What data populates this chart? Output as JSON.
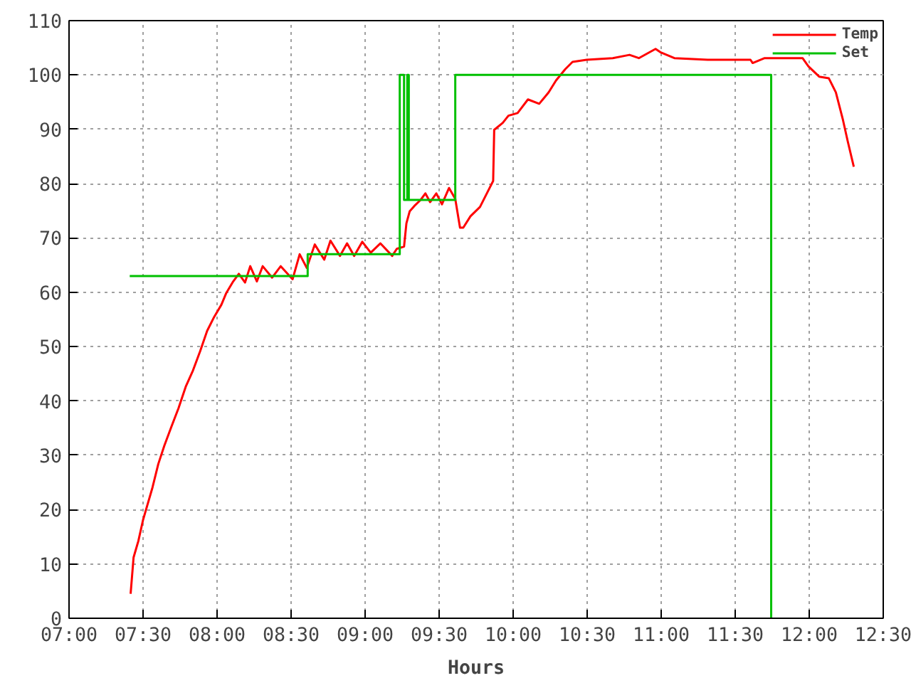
{
  "chart_data": {
    "type": "line",
    "xlabel": "Hours",
    "xlim": [
      7,
      12.5
    ],
    "xticks": [
      {
        "value": 7,
        "label": "07:00"
      },
      {
        "value": 7.5,
        "label": "07:30"
      },
      {
        "value": 8,
        "label": "08:00"
      },
      {
        "value": 8.5,
        "label": "08:30"
      },
      {
        "value": 9,
        "label": "09:00"
      },
      {
        "value": 9.5,
        "label": "09:30"
      },
      {
        "value": 10,
        "label": "10:00"
      },
      {
        "value": 10.5,
        "label": "10:30"
      },
      {
        "value": 11,
        "label": "11:00"
      },
      {
        "value": 11.5,
        "label": "11:30"
      },
      {
        "value": 12,
        "label": "12:00"
      },
      {
        "value": 12.5,
        "label": "12:30"
      }
    ],
    "ylim": [
      0,
      110
    ],
    "yticks": [
      0,
      10,
      20,
      30,
      40,
      50,
      60,
      70,
      80,
      90,
      100,
      110
    ],
    "grid": true,
    "legend": "top right",
    "marker": "none",
    "line_style": "solid",
    "series": [
      {
        "name": "Temp",
        "color": "#ff0000",
        "x": [
          7.416,
          7.436,
          7.468,
          7.5,
          7.532,
          7.564,
          7.603,
          7.644,
          7.692,
          7.74,
          7.788,
          7.837,
          7.885,
          7.933,
          7.981,
          8.029,
          8.061,
          8.109,
          8.147,
          8.189,
          8.224,
          8.269,
          8.308,
          8.372,
          8.43,
          8.51,
          8.558,
          8.606,
          8.66,
          8.724,
          8.766,
          8.83,
          8.878,
          8.926,
          8.981,
          9.038,
          9.103,
          9.183,
          9.214,
          9.263,
          9.279,
          9.301,
          9.333,
          9.375,
          9.407,
          9.439,
          9.481,
          9.519,
          9.567,
          9.609,
          9.641,
          9.663,
          9.712,
          9.776,
          9.824,
          9.865,
          9.872,
          9.93,
          9.968,
          10.03,
          10.1,
          10.176,
          10.24,
          10.29,
          10.353,
          10.401,
          10.497,
          10.673,
          10.786,
          10.849,
          10.962,
          10.994,
          11.089,
          11.314,
          11.603,
          11.618,
          11.699,
          11.955,
          11.994,
          12.067,
          12.132,
          12.18,
          12.228,
          12.26,
          12.301
        ],
        "values": [
          4.5,
          11.2,
          14.2,
          18.1,
          21.1,
          24.1,
          28.4,
          31.8,
          35.3,
          38.7,
          42.6,
          45.6,
          49.1,
          52.9,
          55.5,
          57.7,
          59.8,
          62.0,
          63.4,
          61.8,
          64.8,
          62.0,
          64.8,
          62.7,
          64.8,
          62.4,
          67.0,
          64.5,
          68.8,
          66.0,
          69.5,
          66.7,
          69.0,
          66.7,
          69.3,
          67.3,
          69.0,
          66.7,
          68.0,
          68.4,
          72.7,
          74.9,
          75.9,
          77.0,
          78.2,
          76.6,
          78.2,
          76.2,
          79.2,
          77.2,
          71.9,
          71.9,
          74.0,
          75.7,
          78.3,
          80.5,
          89.9,
          91.2,
          92.5,
          93.0,
          95.5,
          94.7,
          96.8,
          99.0,
          101.1,
          102.4,
          102.8,
          103.1,
          103.7,
          103.1,
          104.8,
          104.2,
          103.1,
          102.8,
          102.8,
          102.2,
          103.1,
          103.1,
          101.6,
          99.7,
          99.4,
          96.8,
          91.7,
          87.8,
          83.1
        ]
      },
      {
        "name": "Set",
        "color": "#00c000",
        "x": [
          7.41,
          8.612,
          8.612,
          9.234,
          9.234,
          9.263,
          9.263,
          9.285,
          9.285,
          9.295,
          9.295,
          9.609,
          9.609,
          11.743,
          11.743
        ],
        "values": [
          63,
          63,
          67,
          67,
          100,
          100,
          77,
          77,
          100,
          100,
          77,
          77,
          100,
          100,
          0
        ]
      }
    ]
  }
}
